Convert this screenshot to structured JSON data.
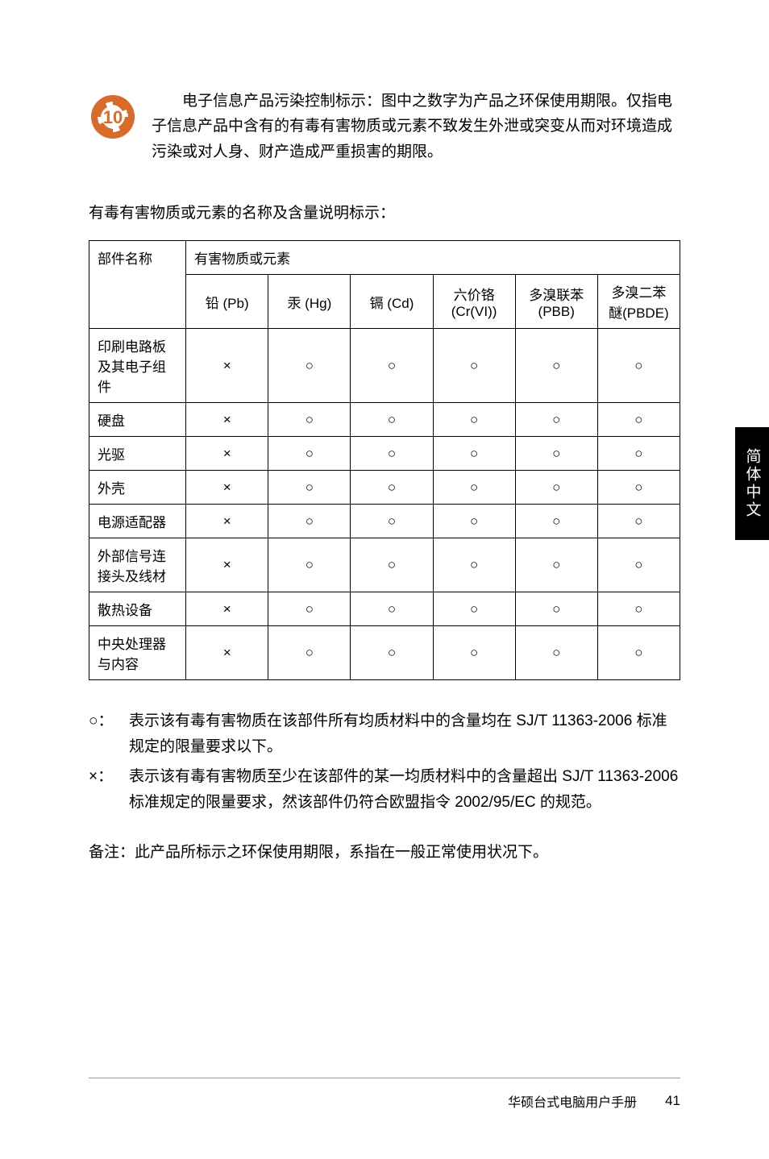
{
  "intro_text": "电子信息产品污染控制标示：图中之数字为产品之环保使用期限。仅指电子信息产品中含有的有毒有害物质或元素不致发生外泄或突变从而对环境造成污染或对人身、财产造成严重损害的期限。",
  "eco_icon": {
    "number": "10",
    "main_color": "#d96b2a",
    "bg_color": "#ffffff"
  },
  "table_caption": "有毒有害物质或元素的名称及含量说明标示：",
  "table": {
    "part_header": "部件名称",
    "substance_header": "有害物质或元素",
    "columns": [
      "铅 (Pb)",
      "汞 (Hg)",
      "镉 (Cd)",
      "六价铬 (Cr(VI))",
      "多溴联苯 (PBB)",
      "多溴二苯醚(PBDE)"
    ],
    "rows": [
      {
        "part": "印刷电路板及其电子组件",
        "values": [
          "×",
          "○",
          "○",
          "○",
          "○",
          "○"
        ]
      },
      {
        "part": "硬盘",
        "values": [
          "×",
          "○",
          "○",
          "○",
          "○",
          "○"
        ]
      },
      {
        "part": "光驱",
        "values": [
          "×",
          "○",
          "○",
          "○",
          "○",
          "○"
        ]
      },
      {
        "part": "外壳",
        "values": [
          "×",
          "○",
          "○",
          "○",
          "○",
          "○"
        ]
      },
      {
        "part": "电源适配器",
        "values": [
          "×",
          "○",
          "○",
          "○",
          "○",
          "○"
        ]
      },
      {
        "part": "外部信号连接头及线材",
        "values": [
          "×",
          "○",
          "○",
          "○",
          "○",
          "○"
        ]
      },
      {
        "part": "散热设备",
        "values": [
          "×",
          "○",
          "○",
          "○",
          "○",
          "○"
        ]
      },
      {
        "part": "中央处理器与内容",
        "values": [
          "×",
          "○",
          "○",
          "○",
          "○",
          "○"
        ]
      }
    ]
  },
  "legend": {
    "circle_symbol": "○：",
    "circle_text": "表示该有毒有害物质在该部件所有均质材料中的含量均在 SJ/T 11363-2006 标准规定的限量要求以下。",
    "cross_symbol": "×：",
    "cross_text": "表示该有毒有害物质至少在该部件的某一均质材料中的含量超出 SJ/T 11363-2006 标准规定的限量要求，然该部件仍符合欧盟指令 2002/95/EC 的规范。"
  },
  "remark": "备注：此产品所标示之环保使用期限，系指在一般正常使用状况下。",
  "side_tab": "简体中文",
  "footer_text": "华硕台式电脑用户手册",
  "page_number": "41"
}
